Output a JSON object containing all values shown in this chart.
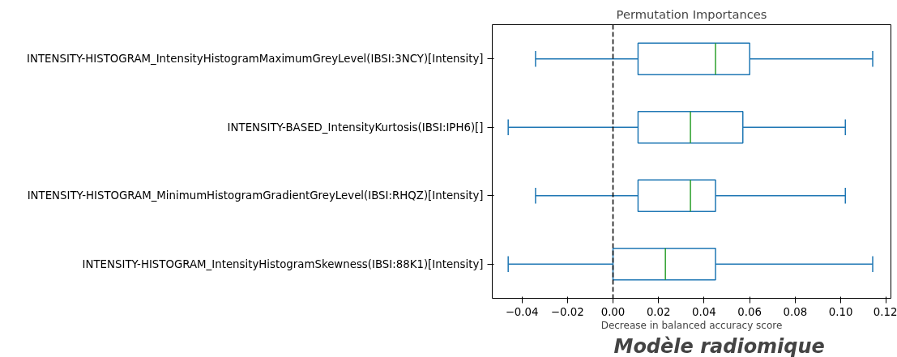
{
  "chart_data": {
    "type": "box",
    "orientation": "horizontal",
    "title": "Permutation Importances",
    "xlabel": "Decrease in balanced accuracy score",
    "categories": [
      "INTENSITY-HISTOGRAM_IntensityHistogramMaximumGreyLevel(IBSI:3NCY)[Intensity]",
      "INTENSITY-BASED_IntensityKurtosis(IBSI:IPH6)[]",
      "INTENSITY-HISTOGRAM_MinimumHistogramGradientGreyLevel(IBSI:RHQZ)[Intensity]",
      "INTENSITY-HISTOGRAM_IntensityHistogramSkewness(IBSI:88K1)[Intensity]"
    ],
    "series": [
      {
        "color": "#1f77b4",
        "boxes": [
          {
            "low": -0.034,
            "q1": 0.011,
            "median": 0.045,
            "q3": 0.06,
            "high": 0.114
          },
          {
            "low": -0.046,
            "q1": 0.011,
            "median": 0.034,
            "q3": 0.057,
            "high": 0.102
          },
          {
            "low": -0.034,
            "q1": 0.011,
            "median": 0.034,
            "q3": 0.045,
            "high": 0.102
          },
          {
            "low": -0.046,
            "q1": 0.0,
            "median": 0.023,
            "q3": 0.045,
            "high": 0.114
          }
        ]
      }
    ],
    "xlim": [
      -0.053,
      0.122
    ],
    "xticks": [
      {
        "value": -0.04,
        "label": "−0.04"
      },
      {
        "value": -0.02,
        "label": "−0.02"
      },
      {
        "value": 0,
        "label": "0.00"
      },
      {
        "value": 0.02,
        "label": "0.02"
      },
      {
        "value": 0.04,
        "label": "0.04"
      },
      {
        "value": 0.06,
        "label": "0.06"
      },
      {
        "value": 0.08,
        "label": "0.08"
      },
      {
        "value": 0.1,
        "label": "0.10"
      },
      {
        "value": 0.12,
        "label": "0.12"
      }
    ],
    "ref_lines": [
      {
        "axis": "x",
        "value": 0,
        "color": "#000000",
        "line_style": "dashed"
      }
    ],
    "grid": false,
    "annotations": [
      "Modèle radiomique"
    ]
  }
}
